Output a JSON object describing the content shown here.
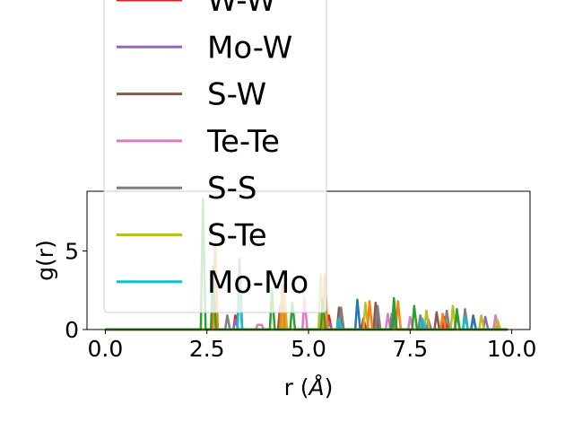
{
  "chart_data": {
    "type": "line",
    "xlabel_main": "r (",
    "xlabel_unit": "Å",
    "xlabel_close": ")",
    "ylabel": "g(r)",
    "xlim": [
      -0.45,
      10.45
    ],
    "ylim": [
      0,
      8.8
    ],
    "xticks": [
      0.0,
      2.5,
      5.0,
      7.5,
      10.0
    ],
    "xtick_labels": [
      "0.0",
      "2.5",
      "5.0",
      "7.5",
      "10.0"
    ],
    "yticks": [
      0,
      5
    ],
    "ytick_labels": [
      "0",
      "5"
    ],
    "legend_location": "upper-left",
    "series": [
      {
        "name": "W-W",
        "color": "#d62728",
        "partially_hidden": true,
        "points": [
          [
            0,
            0
          ],
          [
            3.15,
            0
          ],
          [
            3.2,
            0.9
          ],
          [
            3.27,
            0
          ],
          [
            5.45,
            0
          ],
          [
            5.5,
            0.9
          ],
          [
            5.57,
            0
          ],
          [
            6.3,
            0
          ],
          [
            6.35,
            0.7
          ],
          [
            6.42,
            0
          ],
          [
            8.3,
            0
          ],
          [
            8.35,
            0.8
          ],
          [
            8.42,
            0
          ],
          [
            9.9,
            0
          ]
        ]
      },
      {
        "name": "Mo-W",
        "color": "#9467bd",
        "points": [
          [
            0,
            0
          ],
          [
            3.15,
            0
          ],
          [
            3.2,
            0.6
          ],
          [
            3.27,
            0
          ],
          [
            5.45,
            0
          ],
          [
            5.5,
            0.5
          ],
          [
            5.57,
            0
          ],
          [
            6.6,
            0
          ],
          [
            6.65,
            0.8
          ],
          [
            6.72,
            0
          ],
          [
            7.9,
            0
          ],
          [
            7.95,
            0.6
          ],
          [
            8.02,
            0
          ],
          [
            8.6,
            0
          ],
          [
            8.65,
            1.0
          ],
          [
            8.72,
            0
          ],
          [
            9.3,
            0
          ],
          [
            9.35,
            0.8
          ],
          [
            9.42,
            0
          ],
          [
            9.9,
            0
          ]
        ]
      },
      {
        "name": "S-W",
        "color": "#8c564b",
        "points": [
          [
            0,
            0
          ],
          [
            4.25,
            0
          ],
          [
            4.3,
            1.5
          ],
          [
            4.37,
            0
          ],
          [
            5.7,
            0
          ],
          [
            5.75,
            1.4
          ],
          [
            5.82,
            0
          ],
          [
            6.6,
            0
          ],
          [
            6.65,
            1.7
          ],
          [
            6.72,
            0
          ],
          [
            8.1,
            0
          ],
          [
            8.15,
            1.1
          ],
          [
            8.22,
            0
          ],
          [
            9.0,
            0
          ],
          [
            9.05,
            0.9
          ],
          [
            9.12,
            0
          ],
          [
            9.9,
            0
          ]
        ]
      },
      {
        "name": "Te-Te",
        "color": "#e377c2",
        "points": [
          [
            0,
            0
          ],
          [
            3.7,
            0
          ],
          [
            3.75,
            0.3
          ],
          [
            3.85,
            0.3
          ],
          [
            3.9,
            0
          ],
          [
            4.85,
            0
          ],
          [
            4.9,
            2.0
          ],
          [
            4.97,
            0
          ],
          [
            6.9,
            0
          ],
          [
            6.95,
            1.0
          ],
          [
            7.02,
            0
          ],
          [
            7.45,
            0
          ],
          [
            7.5,
            0.8
          ],
          [
            7.57,
            0
          ],
          [
            9.55,
            0
          ],
          [
            9.6,
            0.9
          ],
          [
            9.67,
            0
          ],
          [
            9.9,
            0
          ]
        ]
      },
      {
        "name": "S-S",
        "color": "#7f7f7f",
        "points": [
          [
            0,
            0
          ],
          [
            2.95,
            0
          ],
          [
            3.0,
            0.9
          ],
          [
            3.07,
            0
          ],
          [
            3.25,
            0
          ],
          [
            3.3,
            4.5
          ],
          [
            3.37,
            0
          ],
          [
            4.3,
            0
          ],
          [
            4.35,
            2.5
          ],
          [
            4.42,
            0
          ],
          [
            5.75,
            0
          ],
          [
            5.8,
            1.4
          ],
          [
            5.87,
            0
          ],
          [
            6.65,
            0
          ],
          [
            6.7,
            1.5
          ],
          [
            6.77,
            0
          ],
          [
            7.0,
            0
          ],
          [
            7.05,
            1.0
          ],
          [
            7.12,
            0
          ],
          [
            7.7,
            0
          ],
          [
            7.75,
            0.9
          ],
          [
            7.82,
            0
          ],
          [
            8.35,
            0
          ],
          [
            8.4,
            1.2
          ],
          [
            8.47,
            0
          ],
          [
            8.8,
            0
          ],
          [
            8.85,
            1.3
          ],
          [
            8.92,
            0
          ],
          [
            9.9,
            0
          ]
        ]
      },
      {
        "name": "S-Te",
        "color": "#bcbd22",
        "points": [
          [
            0,
            0
          ],
          [
            4.35,
            0
          ],
          [
            4.4,
            3.0
          ],
          [
            4.47,
            0
          ],
          [
            5.25,
            0
          ],
          [
            5.3,
            3.5
          ],
          [
            5.37,
            0
          ],
          [
            6.35,
            0
          ],
          [
            6.4,
            1.7
          ],
          [
            6.47,
            0
          ],
          [
            7.85,
            0
          ],
          [
            7.9,
            1.2
          ],
          [
            7.97,
            0
          ],
          [
            8.5,
            0
          ],
          [
            8.55,
            1.5
          ],
          [
            8.62,
            0
          ],
          [
            9.2,
            0
          ],
          [
            9.25,
            0.9
          ],
          [
            9.32,
            0
          ],
          [
            9.6,
            0
          ],
          [
            9.65,
            0.6
          ],
          [
            9.72,
            0
          ],
          [
            9.9,
            0
          ]
        ]
      },
      {
        "name": "Mo-Mo",
        "color": "#17becf",
        "points": [
          [
            0,
            0
          ],
          [
            3.25,
            0
          ],
          [
            3.3,
            2.5
          ],
          [
            3.37,
            0
          ],
          [
            5.7,
            0
          ],
          [
            5.75,
            0.7
          ],
          [
            5.82,
            0
          ],
          [
            7.75,
            0
          ],
          [
            7.8,
            0.7
          ],
          [
            7.87,
            0
          ],
          [
            8.8,
            0
          ],
          [
            8.85,
            0.8
          ],
          [
            8.92,
            0
          ],
          [
            9.9,
            0
          ]
        ]
      },
      {
        "name": "",
        "color": "#1f77b4",
        "points": [
          [
            0,
            0
          ],
          [
            6.15,
            0
          ],
          [
            6.2,
            1.9
          ],
          [
            6.27,
            0
          ],
          [
            7.05,
            0
          ],
          [
            7.1,
            1.2
          ],
          [
            7.17,
            0
          ],
          [
            9.0,
            0
          ],
          [
            9.05,
            0.8
          ],
          [
            9.12,
            0
          ],
          [
            9.9,
            0
          ]
        ]
      },
      {
        "name": "",
        "color": "#ff7f0e",
        "points": [
          [
            0,
            0
          ],
          [
            2.65,
            0
          ],
          [
            2.7,
            5.5
          ],
          [
            2.77,
            0
          ],
          [
            4.3,
            0
          ],
          [
            4.35,
            2.8
          ],
          [
            4.42,
            0
          ],
          [
            5.35,
            0
          ],
          [
            5.4,
            3.5
          ],
          [
            5.47,
            0
          ],
          [
            6.45,
            0
          ],
          [
            6.5,
            1.8
          ],
          [
            6.57,
            0
          ],
          [
            7.15,
            0
          ],
          [
            7.2,
            1.8
          ],
          [
            7.27,
            0
          ],
          [
            8.25,
            0
          ],
          [
            8.3,
            1.0
          ],
          [
            8.37,
            0
          ],
          [
            9.9,
            0
          ]
        ]
      },
      {
        "name": "",
        "color": "#2ca02c",
        "points": [
          [
            0,
            0
          ],
          [
            2.35,
            0
          ],
          [
            2.4,
            8.3
          ],
          [
            2.47,
            0
          ],
          [
            2.6,
            0
          ],
          [
            2.65,
            4.0
          ],
          [
            2.72,
            0
          ],
          [
            4.05,
            0
          ],
          [
            4.1,
            2.5
          ],
          [
            4.17,
            0
          ],
          [
            4.55,
            0
          ],
          [
            4.6,
            1.7
          ],
          [
            4.67,
            0
          ],
          [
            5.3,
            0
          ],
          [
            5.35,
            2.0
          ],
          [
            5.42,
            0
          ],
          [
            7.05,
            0
          ],
          [
            7.1,
            2.0
          ],
          [
            7.17,
            0
          ],
          [
            7.55,
            0
          ],
          [
            7.6,
            1.5
          ],
          [
            7.67,
            0
          ],
          [
            8.6,
            0
          ],
          [
            8.65,
            1.3
          ],
          [
            8.72,
            0
          ],
          [
            9.9,
            0
          ]
        ]
      }
    ]
  }
}
